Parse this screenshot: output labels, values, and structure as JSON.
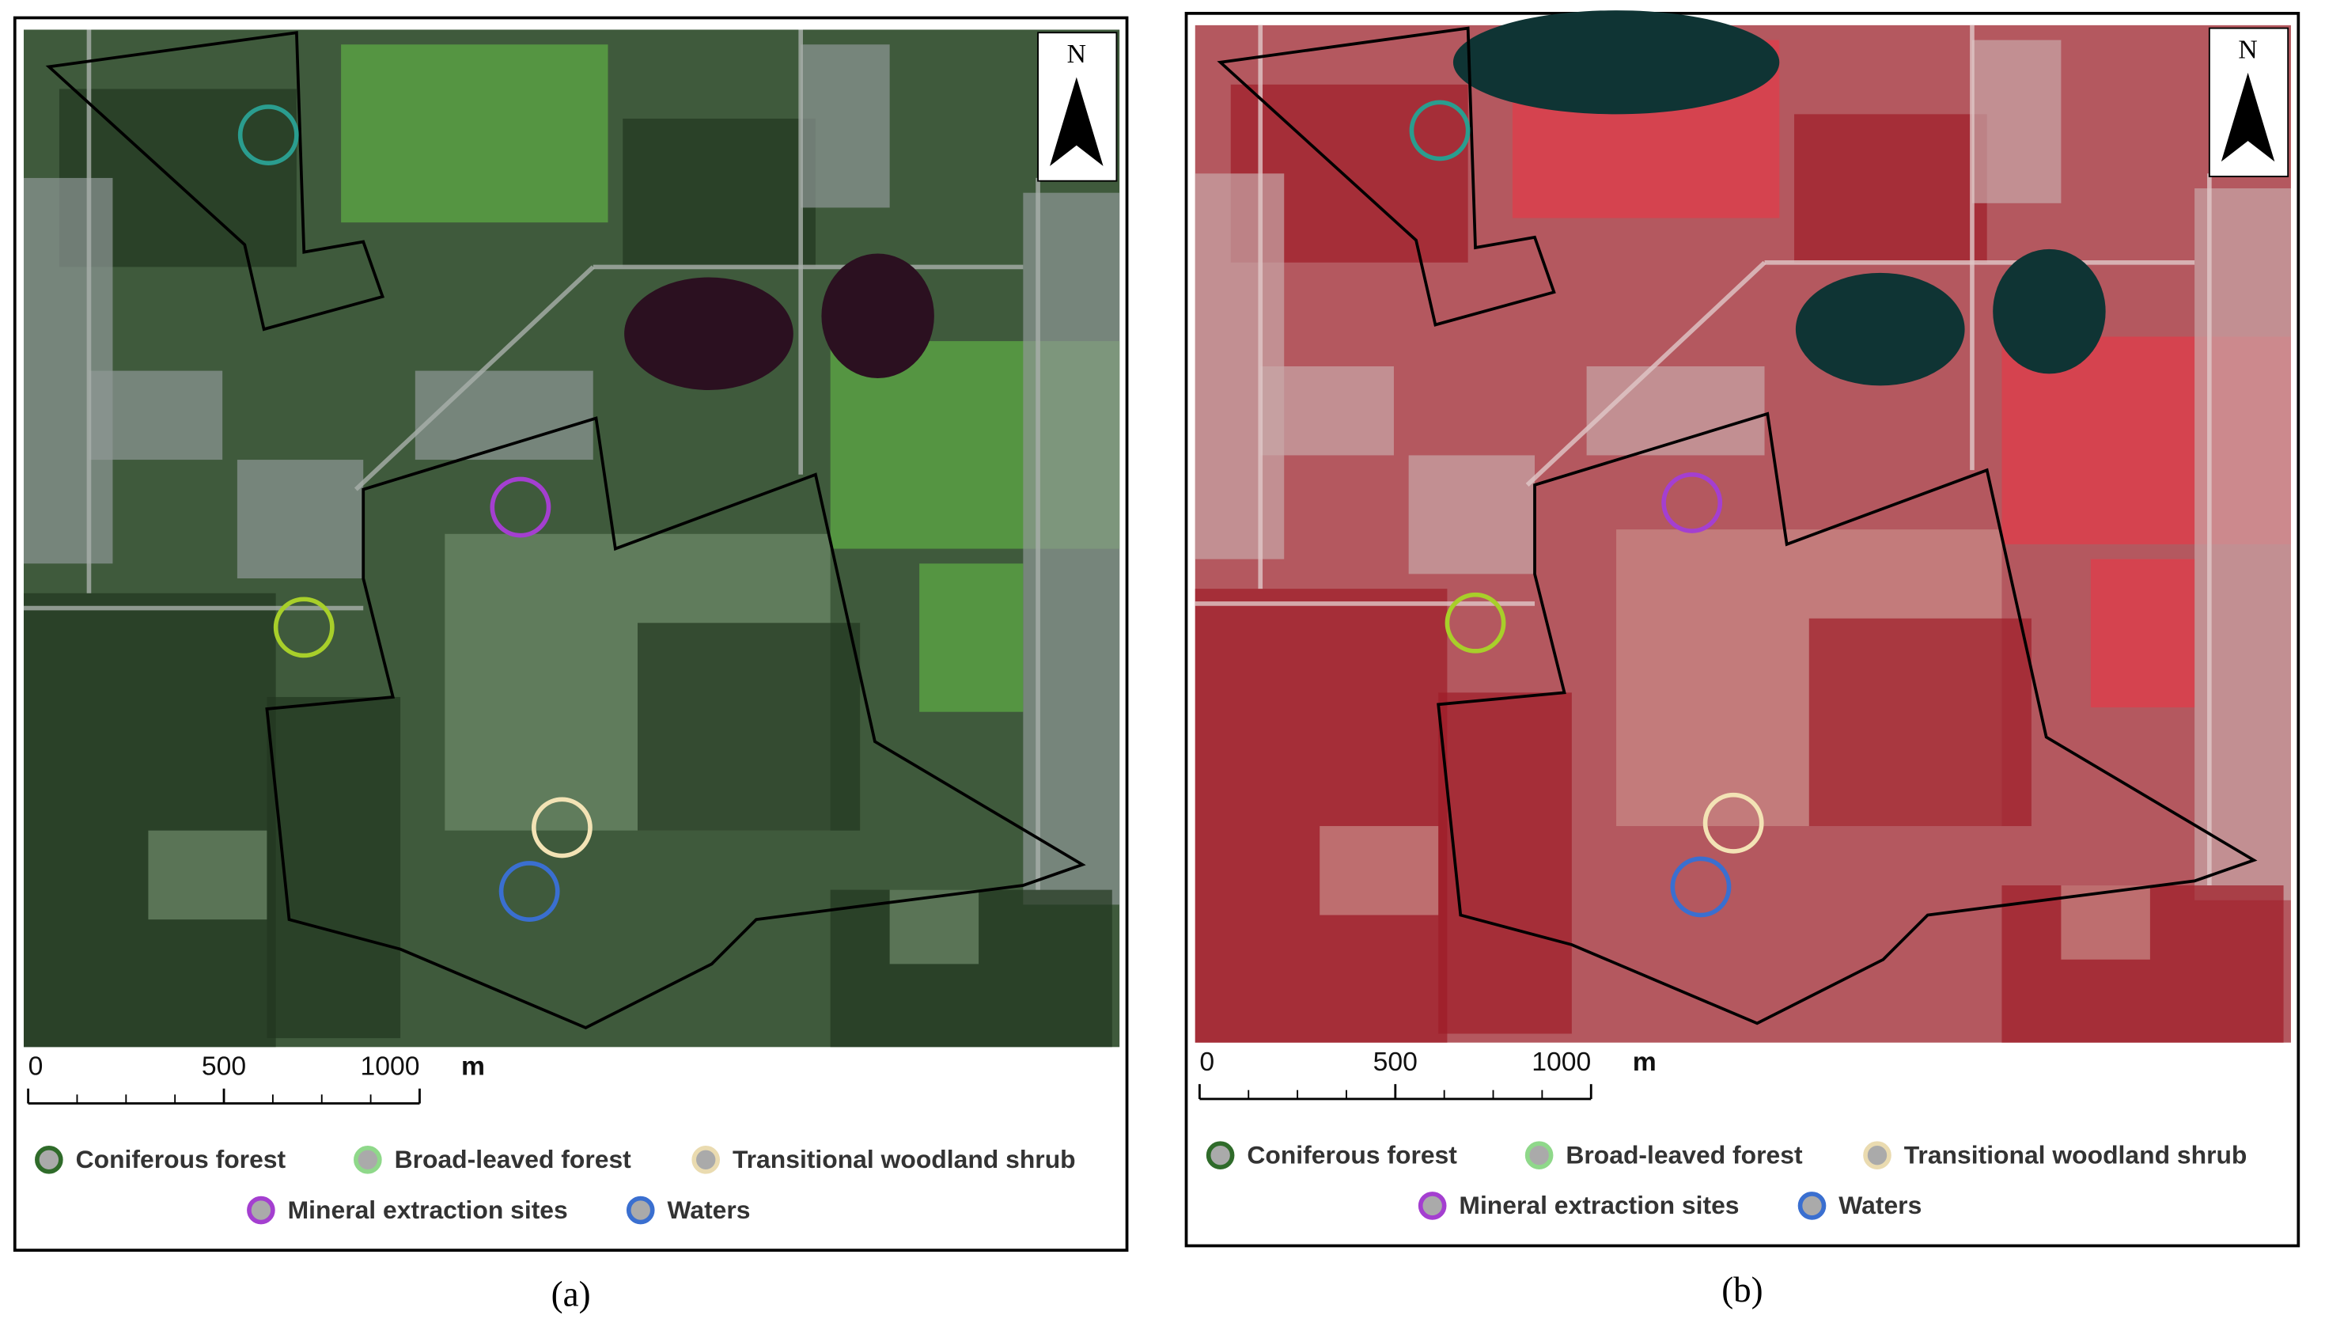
{
  "panels": [
    {
      "north": "N",
      "scale_bar": {
        "ticks": [
          0,
          500,
          1000
        ],
        "unit": "m"
      },
      "legend": [
        {
          "label": "Coniferous forest",
          "color": "#2f6b2a",
          "map_color": "#2a9d8f"
        },
        {
          "label": "Broad-leaved forest",
          "color": "#8fd88a",
          "map_color": "#a8cf2a"
        },
        {
          "label": "Transitional woodland shrub",
          "color": "#eadbb0",
          "map_color": "#f3e3b5"
        },
        {
          "label": "Mineral extraction sites",
          "color": "#a43fd0",
          "map_color": "#a43fd0"
        },
        {
          "label": "Waters",
          "color": "#3a6fd0",
          "map_color": "#3a6fd0"
        }
      ],
      "caption": "(a)"
    },
    {
      "north": "N",
      "scale_bar": {
        "ticks": [
          0,
          500,
          1000
        ],
        "unit": "m"
      },
      "legend": [
        {
          "label": "Coniferous forest",
          "color": "#2f6b2a",
          "map_color": "#2a9d8f"
        },
        {
          "label": "Broad-leaved forest",
          "color": "#8fd88a",
          "map_color": "#a8cf2a"
        },
        {
          "label": "Transitional woodland shrub",
          "color": "#eadbb0",
          "map_color": "#f3e3b5"
        },
        {
          "label": "Mineral extraction sites",
          "color": "#a43fd0",
          "map_color": "#a43fd0"
        },
        {
          "label": "Waters",
          "color": "#3a6fd0",
          "map_color": "#3a6fd0"
        }
      ],
      "caption": "(b)"
    }
  ]
}
